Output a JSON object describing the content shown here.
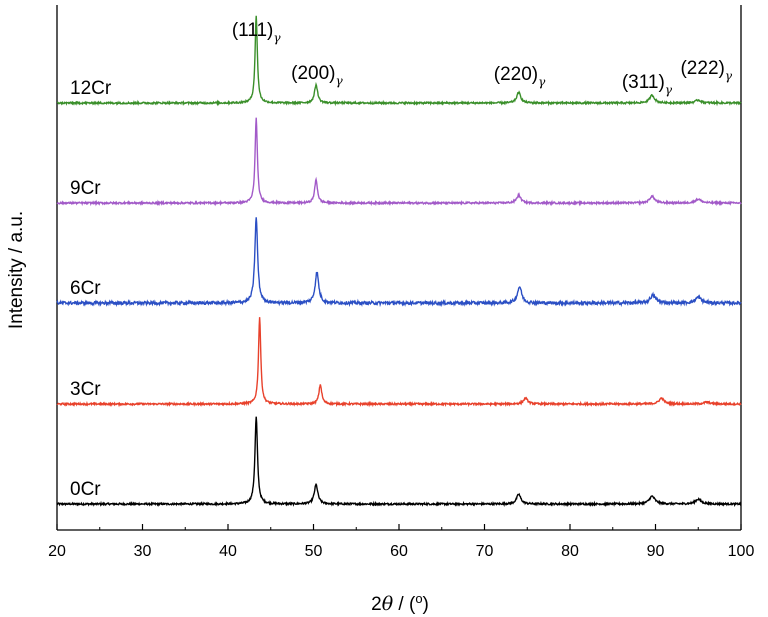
{
  "chart_data": {
    "type": "line",
    "title": "",
    "xlabel_prefix": "2",
    "xlabel_symbol": "θ",
    "xlabel_suffix": " / (",
    "xlabel_degree": "o",
    "xlabel_close": ")",
    "ylabel": "Intensity / a.u.",
    "xlim": [
      20,
      100
    ],
    "xticks": [
      20,
      30,
      40,
      50,
      60,
      70,
      80,
      90,
      100
    ],
    "yticks": [],
    "grid": false,
    "legend": "none",
    "series_offset_note_hidden": "",
    "peak_labels": [
      {
        "text": "(111)",
        "sub": "γ",
        "x": 43.3
      },
      {
        "text": "(200)",
        "sub": "γ",
        "x": 50.4
      },
      {
        "text": "(220)",
        "sub": "γ",
        "x": 74.1
      },
      {
        "text": "(311)",
        "sub": "γ",
        "x": 89.7
      },
      {
        "text": "(222)",
        "sub": "γ",
        "x": 95.0
      }
    ],
    "series": [
      {
        "name": "0Cr",
        "color": "#000000",
        "offset": 0,
        "peaks": [
          [
            43.3,
            90,
            0.18
          ],
          [
            50.3,
            20,
            0.25
          ],
          [
            74.0,
            10,
            0.3
          ],
          [
            89.6,
            8,
            0.4
          ],
          [
            95.0,
            5,
            0.4
          ]
        ]
      },
      {
        "name": "3Cr",
        "color": "#e8412b",
        "offset": 100,
        "peaks": [
          [
            43.7,
            90,
            0.16
          ],
          [
            50.8,
            20,
            0.2
          ],
          [
            74.8,
            6,
            0.3
          ],
          [
            90.7,
            6,
            0.35
          ],
          [
            96.0,
            2,
            0.4
          ]
        ]
      },
      {
        "name": "6Cr",
        "color": "#2b4fc4",
        "offset": 200,
        "peaks": [
          [
            43.3,
            88,
            0.2
          ],
          [
            50.4,
            32,
            0.25
          ],
          [
            74.1,
            17,
            0.3
          ],
          [
            89.7,
            8,
            0.4
          ],
          [
            95.0,
            6,
            0.4
          ]
        ]
      },
      {
        "name": "9Cr",
        "color": "#a25ac8",
        "offset": 300,
        "peaks": [
          [
            43.3,
            88,
            0.16
          ],
          [
            50.3,
            24,
            0.2
          ],
          [
            74.0,
            8,
            0.3
          ],
          [
            89.6,
            7,
            0.35
          ],
          [
            95.0,
            4,
            0.4
          ]
        ]
      },
      {
        "name": "12Cr",
        "color": "#3a8f2a",
        "offset": 400,
        "peaks": [
          [
            43.3,
            90,
            0.16
          ],
          [
            50.3,
            19,
            0.22
          ],
          [
            74.0,
            11,
            0.28
          ],
          [
            89.6,
            8,
            0.35
          ],
          [
            95.0,
            3,
            0.4
          ]
        ]
      }
    ]
  }
}
